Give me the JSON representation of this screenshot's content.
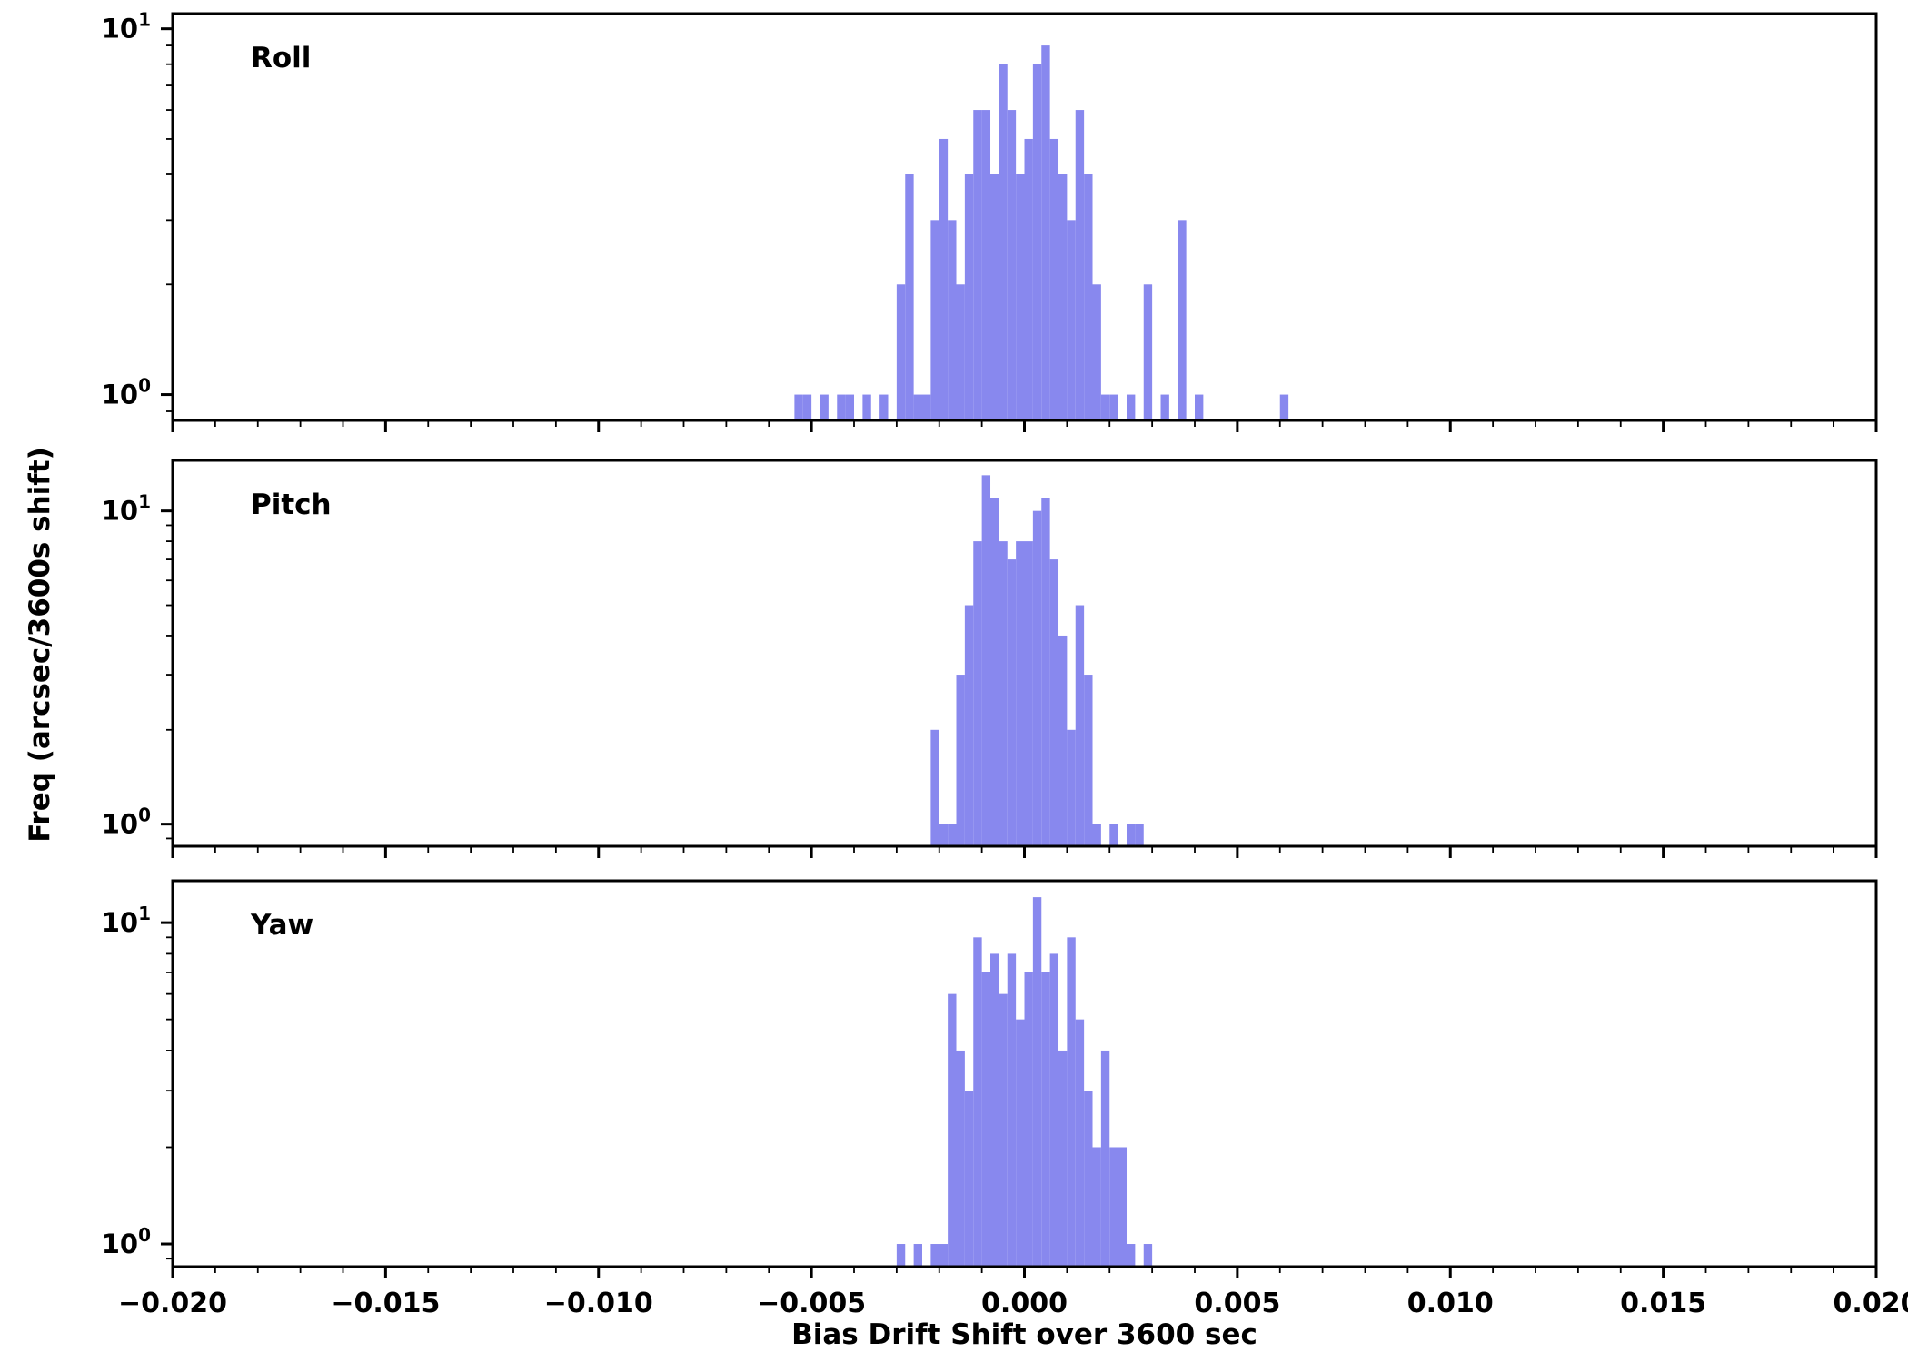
{
  "figure": {
    "xlabel": "Bias Drift Shift over 3600 sec",
    "ylabel": "Freq (arcsec/3600s shift)",
    "background": "#ffffff",
    "axis_color": "#000000",
    "bar_color": "#8888ee",
    "x_ticks": [
      -0.02,
      -0.015,
      -0.01,
      -0.005,
      0.0,
      0.005,
      0.01,
      0.015,
      0.02
    ],
    "x_tick_labels": [
      "−0.020",
      "−0.015",
      "−0.010",
      "−0.005",
      "0.000",
      "0.005",
      "0.010",
      "0.015",
      "0.020"
    ],
    "x_minor_step": 0.001,
    "y_ticks": [
      {
        "value": 1,
        "base": "10",
        "exponent": "0"
      },
      {
        "value": 10,
        "base": "10",
        "exponent": "1"
      }
    ],
    "y_minor_values": [
      0.9,
      2,
      3,
      4,
      5,
      6,
      7,
      8,
      9
    ]
  },
  "chart_data": [
    {
      "type": "bar",
      "title": "Roll",
      "xlabel": "Bias Drift Shift over 3600 sec",
      "ylabel": "Freq (arcsec/3600s shift)",
      "yscale": "log",
      "xlim": [
        -0.02,
        0.02
      ],
      "ylim": [
        0.85,
        11.0
      ],
      "bin_width": 0.0002,
      "bars": [
        [
          -0.0054,
          1
        ],
        [
          -0.0052,
          1
        ],
        [
          -0.0048,
          1
        ],
        [
          -0.0044,
          1
        ],
        [
          -0.0042,
          1
        ],
        [
          -0.0038,
          1
        ],
        [
          -0.0034,
          1
        ],
        [
          -0.003,
          2
        ],
        [
          -0.0028,
          4
        ],
        [
          -0.0026,
          1
        ],
        [
          -0.0024,
          1
        ],
        [
          -0.0022,
          3
        ],
        [
          -0.002,
          5
        ],
        [
          -0.0018,
          3
        ],
        [
          -0.0016,
          2
        ],
        [
          -0.0014,
          4
        ],
        [
          -0.0012,
          6
        ],
        [
          -0.001,
          6
        ],
        [
          -0.0008,
          4
        ],
        [
          -0.0006,
          8
        ],
        [
          -0.0004,
          6
        ],
        [
          -0.0002,
          4
        ],
        [
          0.0,
          5
        ],
        [
          0.0002,
          8
        ],
        [
          0.0004,
          9
        ],
        [
          0.0006,
          5
        ],
        [
          0.0008,
          4
        ],
        [
          0.001,
          3
        ],
        [
          0.0012,
          6
        ],
        [
          0.0014,
          4
        ],
        [
          0.0016,
          2
        ],
        [
          0.0018,
          1
        ],
        [
          0.002,
          1
        ],
        [
          0.0024,
          1
        ],
        [
          0.0028,
          2
        ],
        [
          0.0032,
          1
        ],
        [
          0.0036,
          3
        ],
        [
          0.004,
          1
        ],
        [
          0.006,
          1
        ]
      ]
    },
    {
      "type": "bar",
      "title": "Pitch",
      "xlabel": "Bias Drift Shift over 3600 sec",
      "ylabel": "Freq (arcsec/3600s shift)",
      "yscale": "log",
      "xlim": [
        -0.02,
        0.02
      ],
      "ylim": [
        0.85,
        14.5
      ],
      "bin_width": 0.0002,
      "bars": [
        [
          -0.0022,
          2
        ],
        [
          -0.002,
          1
        ],
        [
          -0.0018,
          1
        ],
        [
          -0.0016,
          3
        ],
        [
          -0.0014,
          5
        ],
        [
          -0.0012,
          8
        ],
        [
          -0.001,
          13
        ],
        [
          -0.0008,
          11
        ],
        [
          -0.0006,
          8
        ],
        [
          -0.0004,
          7
        ],
        [
          -0.0002,
          8
        ],
        [
          0.0,
          8
        ],
        [
          0.0002,
          10
        ],
        [
          0.0004,
          11
        ],
        [
          0.0006,
          7
        ],
        [
          0.0008,
          4
        ],
        [
          0.001,
          2
        ],
        [
          0.0012,
          5
        ],
        [
          0.0014,
          3
        ],
        [
          0.0016,
          1
        ],
        [
          0.002,
          1
        ],
        [
          0.0024,
          1
        ],
        [
          0.0026,
          1
        ]
      ]
    },
    {
      "type": "bar",
      "title": "Yaw",
      "xlabel": "Bias Drift Shift over 3600 sec",
      "ylabel": "Freq (arcsec/3600s shift)",
      "yscale": "log",
      "xlim": [
        -0.02,
        0.02
      ],
      "ylim": [
        0.85,
        13.5
      ],
      "bin_width": 0.0002,
      "bars": [
        [
          -0.003,
          1
        ],
        [
          -0.0026,
          1
        ],
        [
          -0.0022,
          1
        ],
        [
          -0.002,
          1
        ],
        [
          -0.0018,
          6
        ],
        [
          -0.0016,
          4
        ],
        [
          -0.0014,
          3
        ],
        [
          -0.0012,
          9
        ],
        [
          -0.001,
          7
        ],
        [
          -0.0008,
          8
        ],
        [
          -0.0006,
          6
        ],
        [
          -0.0004,
          8
        ],
        [
          -0.0002,
          5
        ],
        [
          0.0,
          7
        ],
        [
          0.0002,
          12
        ],
        [
          0.0004,
          7
        ],
        [
          0.0006,
          8
        ],
        [
          0.0008,
          4
        ],
        [
          0.001,
          9
        ],
        [
          0.0012,
          5
        ],
        [
          0.0014,
          3
        ],
        [
          0.0016,
          2
        ],
        [
          0.0018,
          4
        ],
        [
          0.002,
          2
        ],
        [
          0.0022,
          2
        ],
        [
          0.0024,
          1
        ],
        [
          0.0028,
          1
        ]
      ]
    }
  ]
}
